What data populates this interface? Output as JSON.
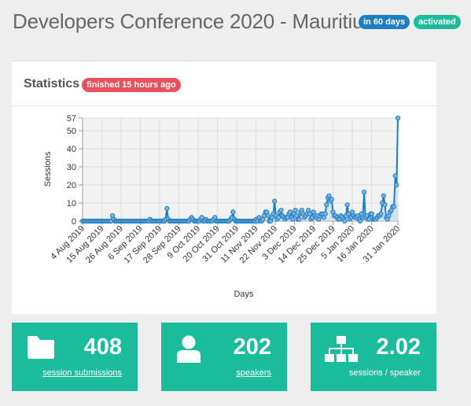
{
  "header": {
    "title": "Developers Conference 2020 - Mauritius",
    "badge_countdown": "in 60 days",
    "badge_status": "activated",
    "badge_countdown_color": "#1e7ec2",
    "badge_status_color": "#1abc9c"
  },
  "statistics": {
    "title": "Statistics",
    "badge": "finished 15 hours ago",
    "badge_color": "#e8505b"
  },
  "chart_data": {
    "type": "line",
    "xlabel": "Days",
    "ylabel": "Sessions",
    "ylim": [
      0,
      57
    ],
    "yticks": [
      0,
      10,
      20,
      30,
      40,
      50,
      57
    ],
    "grid": true,
    "series_color": "#1e7ec2",
    "x_start": "2019-08-04",
    "x_end": "2020-01-31",
    "xtick_labels": [
      "4 Aug 2019",
      "15 Aug 2019",
      "26 Aug 2019",
      "6 Sep 2019",
      "17 Sep 2019",
      "28 Sep 2019",
      "9 Oct 2019",
      "20 Oct 2019",
      "31 Oct 2019",
      "11 Nov 2019",
      "22 Nov 2019",
      "3 Dec 2019",
      "14 Dec 2019",
      "25 Dec 2019",
      "5 Jan 2020",
      "16 Jan 2020",
      "31 Jan 2020"
    ],
    "series": [
      {
        "values": [
          0,
          0,
          0,
          0,
          0,
          0,
          0,
          0,
          0,
          0,
          0,
          0,
          0,
          0,
          0,
          0,
          0,
          0,
          0,
          0,
          0,
          0,
          0,
          3,
          1,
          0,
          0,
          0,
          0,
          0,
          0,
          0,
          0,
          0,
          0,
          0,
          0,
          0,
          0,
          0,
          0,
          0,
          0,
          0,
          0,
          0,
          0,
          0,
          0,
          0,
          0,
          0,
          1,
          0,
          0,
          0,
          0,
          0,
          0,
          0,
          0,
          0,
          0,
          0,
          1,
          7,
          1,
          0,
          0,
          0,
          0,
          0,
          0,
          0,
          0,
          0,
          0,
          0,
          0,
          0,
          0,
          0,
          0,
          1,
          2,
          1,
          0,
          0,
          0,
          0,
          0,
          1,
          2,
          0,
          0,
          1,
          0,
          0,
          0,
          0,
          0,
          1,
          2,
          0,
          0,
          0,
          0,
          0,
          0,
          0,
          0,
          0,
          0,
          0,
          1,
          2,
          5,
          1,
          0,
          0,
          0,
          0,
          0,
          0,
          0,
          0,
          0,
          0,
          0,
          0,
          0,
          0,
          0,
          0,
          1,
          0,
          2,
          0,
          0,
          1,
          3,
          5,
          5,
          3,
          0,
          0,
          2,
          4,
          11,
          3,
          1,
          2,
          5,
          6,
          3,
          2,
          1,
          2,
          2,
          4,
          5,
          2,
          1,
          4,
          6,
          3,
          1,
          1,
          5,
          6,
          4,
          2,
          3,
          4,
          6,
          4,
          1,
          2,
          5,
          3,
          2,
          3,
          1,
          3,
          4,
          4,
          2,
          4,
          9,
          13,
          14,
          11,
          12,
          5,
          3,
          3,
          2,
          1,
          1,
          3,
          2,
          1,
          0,
          3,
          9,
          4,
          1,
          2,
          5,
          3,
          2,
          2,
          3,
          1,
          0,
          4,
          2,
          16,
          2,
          3,
          1,
          1,
          4,
          4,
          1,
          1,
          1,
          2,
          3,
          3,
          4,
          10,
          14,
          9,
          2,
          1,
          3,
          5,
          6,
          8,
          8,
          25,
          20,
          57
        ]
      }
    ]
  },
  "cards": [
    {
      "value": "408",
      "label": "session submissions",
      "icon": "folder-icon"
    },
    {
      "value": "202",
      "label": "speakers",
      "icon": "user-icon"
    },
    {
      "value": "2.02",
      "label": "sessions / speaker",
      "icon": "sitemap-icon"
    }
  ]
}
